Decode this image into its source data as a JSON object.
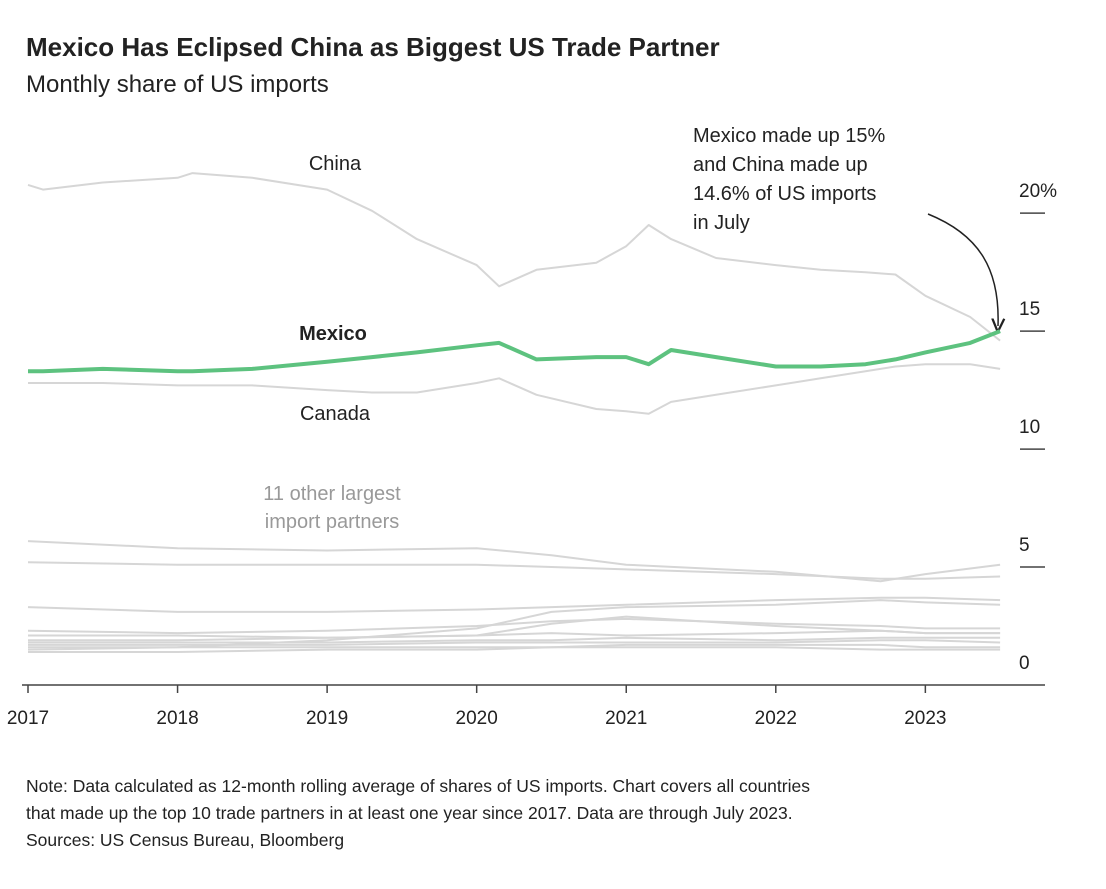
{
  "chart_data": {
    "type": "line",
    "title": "Mexico Has Eclipsed China as Biggest US Trade Partner",
    "subtitle": "Monthly share of US imports",
    "x": [
      2017.0,
      2017.1,
      2017.5,
      2018.0,
      2018.1,
      2018.5,
      2019.0,
      2019.3,
      2019.6,
      2020.0,
      2020.15,
      2020.4,
      2020.8,
      2021.0,
      2021.15,
      2021.3,
      2021.6,
      2022.0,
      2022.3,
      2022.6,
      2022.8,
      2023.0,
      2023.3,
      2023.5
    ],
    "series": [
      {
        "name": "China",
        "color": "#d6d6d6",
        "values": [
          21.2,
          21.0,
          21.3,
          21.5,
          21.7,
          21.5,
          21.0,
          20.1,
          18.9,
          17.8,
          16.9,
          17.6,
          17.9,
          18.6,
          19.5,
          18.9,
          18.1,
          17.8,
          17.6,
          17.5,
          17.4,
          16.5,
          15.6,
          14.6
        ]
      },
      {
        "name": "Mexico",
        "color": "#5dc27f",
        "values": [
          13.3,
          13.3,
          13.4,
          13.3,
          13.3,
          13.4,
          13.7,
          13.9,
          14.1,
          14.4,
          14.5,
          13.8,
          13.9,
          13.9,
          13.6,
          14.2,
          13.9,
          13.5,
          13.5,
          13.6,
          13.8,
          14.1,
          14.5,
          15.0
        ]
      },
      {
        "name": "Canada",
        "color": "#d6d6d6",
        "values": [
          12.8,
          12.8,
          12.8,
          12.7,
          12.7,
          12.7,
          12.5,
          12.4,
          12.4,
          12.8,
          13.0,
          12.3,
          11.7,
          11.6,
          11.5,
          12.0,
          12.3,
          12.7,
          13.0,
          13.3,
          13.5,
          13.6,
          13.6,
          13.4
        ]
      }
    ],
    "others": {
      "label": [
        "11 other largest",
        "import partners"
      ],
      "color": "#d6d6d6",
      "x": [
        2017.0,
        2018.0,
        2019.0,
        2020.0,
        2020.5,
        2021.0,
        2022.0,
        2022.7,
        2023.0,
        2023.5
      ],
      "series": [
        {
          "values": [
            6.1,
            5.8,
            5.7,
            5.8,
            5.5,
            5.1,
            4.8,
            4.4,
            4.7,
            5.1
          ]
        },
        {
          "values": [
            5.2,
            5.1,
            5.1,
            5.1,
            5.0,
            4.9,
            4.7,
            4.5,
            4.5,
            4.6
          ]
        },
        {
          "values": [
            3.3,
            3.1,
            3.1,
            3.2,
            3.3,
            3.4,
            3.6,
            3.7,
            3.7,
            3.6
          ]
        },
        {
          "values": [
            1.5,
            1.6,
            1.9,
            2.4,
            3.1,
            3.3,
            3.4,
            3.6,
            3.5,
            3.4
          ]
        },
        {
          "values": [
            2.3,
            2.2,
            2.3,
            2.5,
            2.7,
            2.8,
            2.6,
            2.5,
            2.4,
            2.4
          ]
        },
        {
          "values": [
            2.1,
            2.1,
            2.0,
            2.1,
            2.6,
            2.9,
            2.5,
            2.3,
            2.2,
            2.2
          ]
        },
        {
          "values": [
            1.9,
            1.9,
            2.0,
            2.1,
            2.2,
            2.1,
            2.2,
            2.3,
            2.2,
            2.2
          ]
        },
        {
          "values": [
            1.8,
            1.8,
            1.8,
            1.9,
            1.9,
            2.0,
            1.9,
            2.0,
            2.0,
            2.0
          ]
        },
        {
          "values": [
            1.7,
            1.7,
            1.7,
            1.8,
            1.8,
            1.8,
            1.8,
            1.9,
            1.9,
            1.8
          ]
        },
        {
          "values": [
            1.6,
            1.6,
            1.6,
            1.6,
            1.6,
            1.7,
            1.7,
            1.7,
            1.6,
            1.6
          ]
        },
        {
          "values": [
            1.4,
            1.4,
            1.5,
            1.5,
            1.6,
            1.6,
            1.6,
            1.5,
            1.5,
            1.5
          ]
        }
      ]
    },
    "annotation": [
      "Mexico made up 15%",
      "and China made up",
      "14.6% of US imports",
      "in July"
    ],
    "xlim": [
      2017,
      2023.8
    ],
    "xticks": [
      2017,
      2018,
      2019,
      2020,
      2021,
      2022,
      2023
    ],
    "ylim": [
      0,
      22
    ],
    "yticks": [
      0,
      5,
      10,
      15,
      {
        "value": 20,
        "label": "20%"
      }
    ],
    "note": [
      "Note: Data calculated as 12-month rolling average of shares of US imports. Chart covers all countries",
      "that made up the top 10 trade partners in at least one year since 2017. Data are through July 2023.",
      "Sources: US Census Bureau, Bloomberg"
    ]
  }
}
